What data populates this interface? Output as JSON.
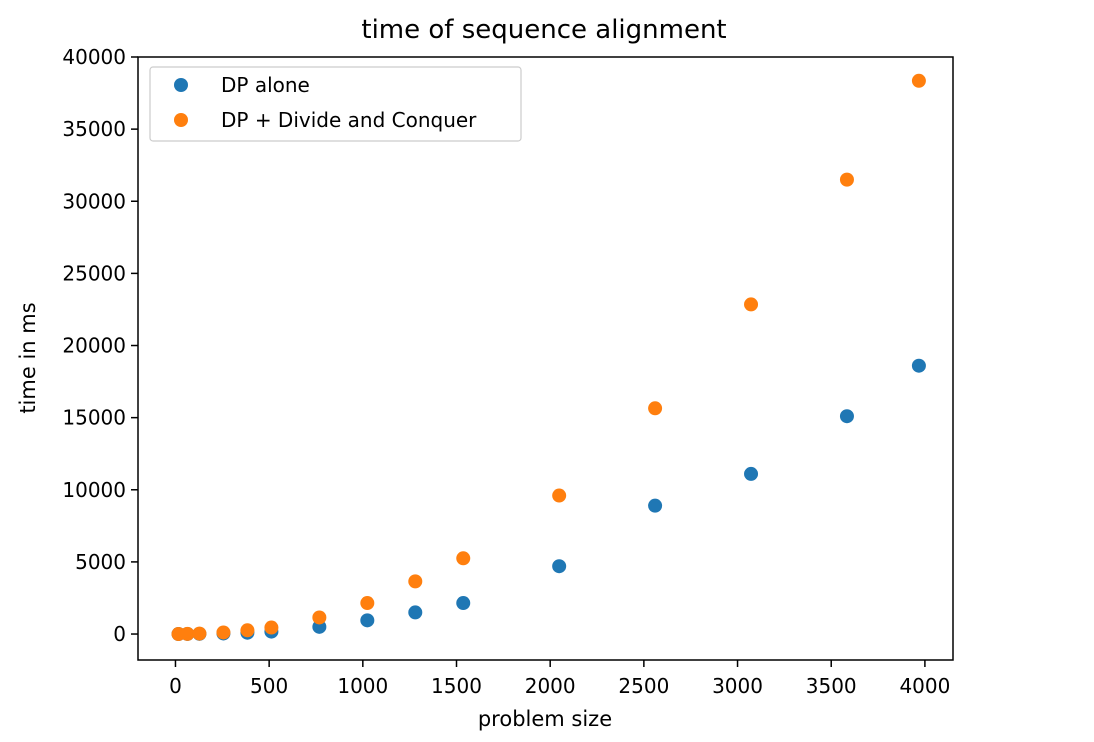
{
  "chart_data": {
    "type": "scatter",
    "title": "time of sequence alignment",
    "xlabel": "problem size",
    "ylabel": "time in ms",
    "xlim": [
      -200,
      4150
    ],
    "ylim": [
      -1800,
      40000
    ],
    "xticks": [
      0,
      500,
      1000,
      1500,
      2000,
      2500,
      3000,
      3500,
      4000
    ],
    "yticks": [
      0,
      5000,
      10000,
      15000,
      20000,
      25000,
      30000,
      35000,
      40000
    ],
    "legend_position": "top-left",
    "grid": false,
    "series": [
      {
        "name": "DP alone",
        "color": "#1f77b4",
        "x": [
          16,
          64,
          128,
          256,
          384,
          512,
          768,
          1024,
          1280,
          1536,
          2048,
          2560,
          3072,
          3584,
          3968
        ],
        "y": [
          0,
          5,
          15,
          40,
          90,
          170,
          500,
          950,
          1500,
          2150,
          4700,
          8900,
          11100,
          15100,
          18600
        ]
      },
      {
        "name": "DP + Divide and Conquer",
        "color": "#ff7f0e",
        "x": [
          16,
          64,
          128,
          256,
          384,
          512,
          768,
          1024,
          1280,
          1536,
          2048,
          2560,
          3072,
          3584,
          3968
        ],
        "y": [
          0,
          10,
          30,
          110,
          260,
          450,
          1150,
          2150,
          3650,
          5250,
          9600,
          15650,
          22850,
          31500,
          38350
        ]
      }
    ]
  }
}
